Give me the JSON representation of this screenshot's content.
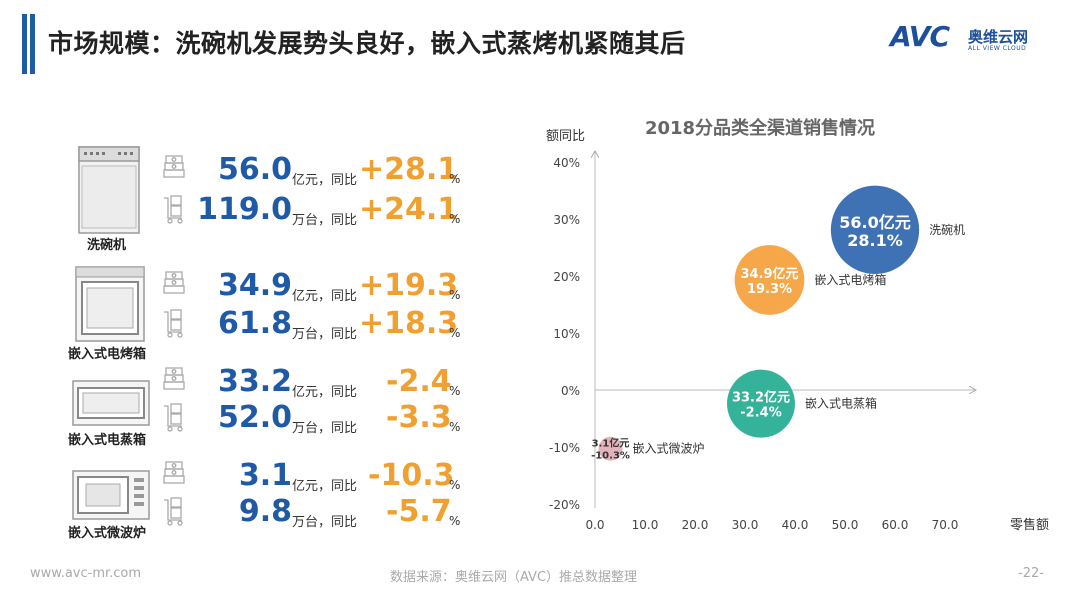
{
  "title": "市场规模：洗碗机发展势头良好，嵌入式蒸烤机紧随其后",
  "logo": {
    "brand": "AVC",
    "cn": "奥维云网",
    "en": "ALL VIEW CLOUD"
  },
  "products": [
    {
      "name": "洗碗机",
      "icon": "dishwasher-icon",
      "sales": {
        "value": "56.0",
        "unit": "亿元，同比",
        "yoy": "+28.1",
        "pct": "%"
      },
      "volume": {
        "value": "119.0",
        "unit": "万台，同比",
        "yoy": "+24.1",
        "pct": "%"
      }
    },
    {
      "name": "嵌入式电烤箱",
      "icon": "oven-icon",
      "sales": {
        "value": "34.9",
        "unit": "亿元，同比",
        "yoy": "+19.3",
        "pct": "%"
      },
      "volume": {
        "value": "61.8",
        "unit": "万台，同比",
        "yoy": "+18.3",
        "pct": "%"
      }
    },
    {
      "name": "嵌入式电蒸箱",
      "icon": "steamer-icon",
      "sales": {
        "value": "33.2",
        "unit": "亿元，同比",
        "yoy": "-2.4",
        "pct": "%"
      },
      "volume": {
        "value": "52.0",
        "unit": "万台，同比",
        "yoy": "-3.3",
        "pct": "%"
      }
    },
    {
      "name": "嵌入式微波炉",
      "icon": "microwave-icon",
      "sales": {
        "value": "3.1",
        "unit": "亿元，同比",
        "yoy": "-10.3",
        "pct": "%"
      },
      "volume": {
        "value": "9.8",
        "unit": "万台，同比",
        "yoy": "-5.7",
        "pct": "%"
      }
    }
  ],
  "chart_data": {
    "type": "scatter",
    "title": "2018分品类全渠道销售情况",
    "xlabel": "零售额",
    "ylabel": "额同比",
    "xlim": [
      0,
      70
    ],
    "ylim": [
      -20,
      40
    ],
    "xticks": [
      "0.0",
      "10.0",
      "20.0",
      "30.0",
      "40.0",
      "50.0",
      "60.0",
      "70.0"
    ],
    "yticks": [
      "-20%",
      "-10%",
      "0%",
      "10%",
      "20%",
      "30%",
      "40%"
    ],
    "grid": false,
    "points": [
      {
        "name": "洗碗机",
        "x": 56.0,
        "y": 28.1,
        "label1": "56.0亿元",
        "label2": "28.1%",
        "color": "#3f72b4"
      },
      {
        "name": "嵌入式电烤箱",
        "x": 34.9,
        "y": 19.3,
        "label1": "34.9亿元",
        "label2": "19.3%",
        "color": "#f5a74a"
      },
      {
        "name": "嵌入式电蒸箱",
        "x": 33.2,
        "y": -2.4,
        "label1": "33.2亿元",
        "label2": "-2.4%",
        "color": "#35b39a"
      },
      {
        "name": "嵌入式微波炉",
        "x": 3.1,
        "y": -10.3,
        "label1": "3.1亿元",
        "label2": "-10.3%",
        "color": "#d99aa4"
      }
    ]
  },
  "footer": {
    "website": "www.avc-mr.com",
    "source": "数据来源：奥维云网（AVC）推总数据整理",
    "page": "-22-"
  }
}
